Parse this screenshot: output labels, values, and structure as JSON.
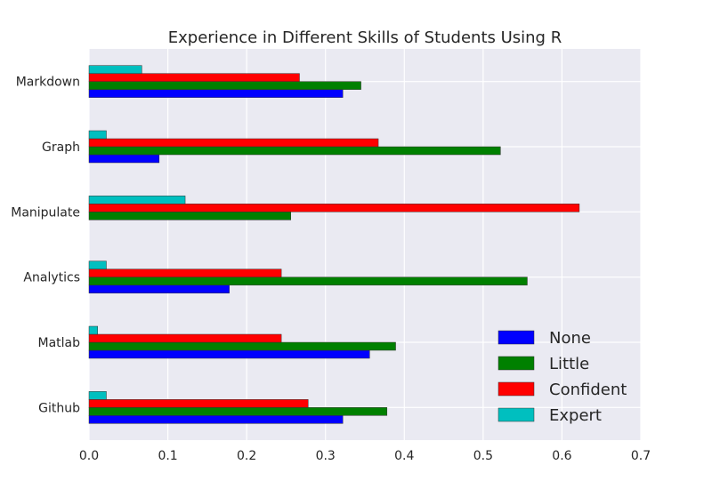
{
  "chart_data": {
    "type": "bar",
    "orientation": "horizontal",
    "title": "Experience in Different Skills of Students Using R",
    "xlabel": "",
    "ylabel": "",
    "xlim": [
      0,
      0.7
    ],
    "xticks": [
      "0.0",
      "0.1",
      "0.2",
      "0.3",
      "0.4",
      "0.5",
      "0.6",
      "0.7"
    ],
    "grid": true,
    "legend_position": "bottom-right",
    "categories": [
      "Github",
      "Matlab",
      "Analytics",
      "Manipulate",
      "Graph",
      "Markdown"
    ],
    "series": [
      {
        "name": "None",
        "color": "#0000ff",
        "values": [
          0.322,
          0.356,
          0.178,
          0.0,
          0.089,
          0.322
        ]
      },
      {
        "name": "Little",
        "color": "#008000",
        "values": [
          0.378,
          0.389,
          0.556,
          0.256,
          0.522,
          0.345
        ]
      },
      {
        "name": "Confident",
        "color": "#ff0000",
        "values": [
          0.278,
          0.244,
          0.244,
          0.622,
          0.367,
          0.267
        ]
      },
      {
        "name": "Expert",
        "color": "#00bfbf",
        "values": [
          0.022,
          0.011,
          0.022,
          0.122,
          0.022,
          0.067
        ]
      }
    ]
  }
}
